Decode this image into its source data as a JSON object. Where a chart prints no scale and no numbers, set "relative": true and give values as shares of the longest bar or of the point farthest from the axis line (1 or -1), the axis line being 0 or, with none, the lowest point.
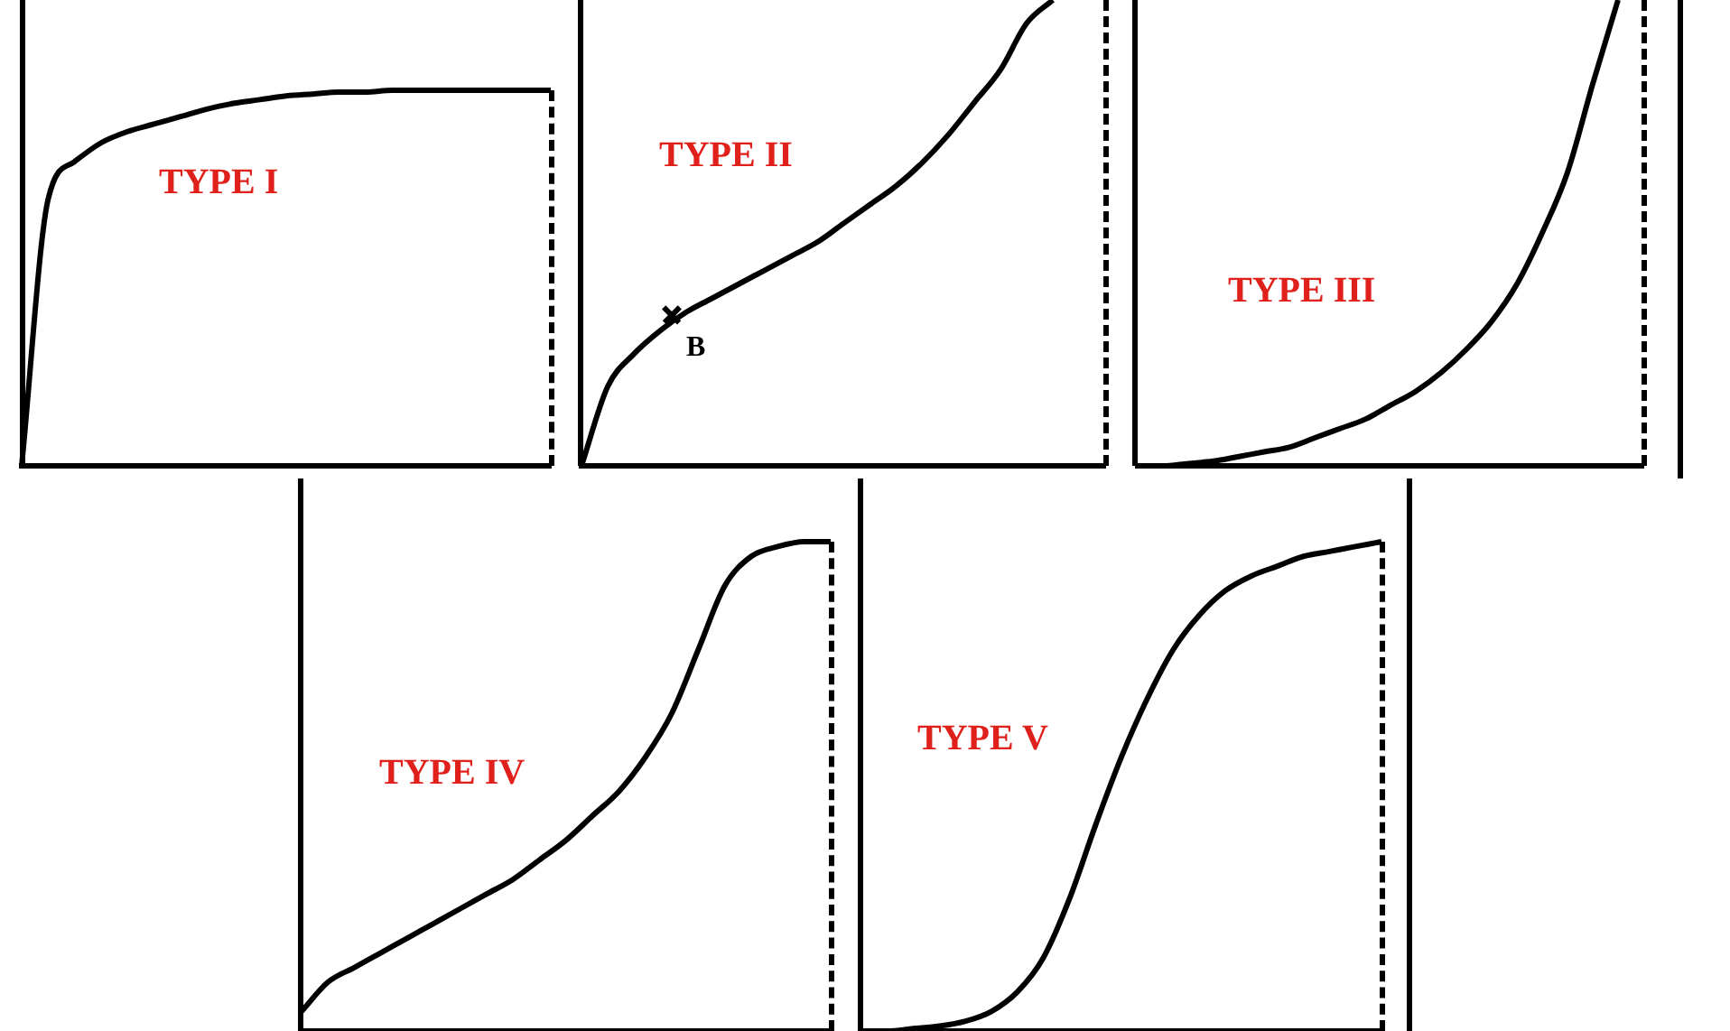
{
  "chart_data": [
    {
      "type": "line",
      "title": "TYPE I",
      "relative": true,
      "color": "#000000",
      "categories": [
        null,
        null,
        null,
        null,
        null,
        null,
        null,
        null,
        null,
        null,
        null,
        null,
        null,
        null,
        null,
        null,
        null,
        null,
        null,
        null,
        null
      ],
      "values": [
        0,
        0.71,
        0.81,
        0.86,
        0.89,
        0.91,
        0.93,
        0.95,
        0.965,
        0.975,
        0.985,
        0.99,
        0.995,
        0.995,
        1,
        1,
        1,
        1,
        1,
        1,
        1
      ]
    },
    {
      "type": "line",
      "title": "TYPE II",
      "relative": true,
      "color": "#000000",
      "annotations": [
        "B"
      ],
      "categories": [
        null,
        null,
        null,
        null,
        null,
        null,
        null,
        null,
        null,
        null,
        null,
        null,
        null,
        null,
        null,
        null,
        null,
        null,
        null,
        null,
        null
      ],
      "values": [
        0,
        0.17,
        0.24,
        0.29,
        0.33,
        0.36,
        0.39,
        0.42,
        0.45,
        0.48,
        0.52,
        0.56,
        0.6,
        0.65,
        0.71,
        0.78,
        0.85,
        0.95,
        1,
        null,
        null
      ]
    },
    {
      "type": "line",
      "title": "TYPE III",
      "relative": true,
      "color": "#000000",
      "categories": [
        null,
        null,
        null,
        null,
        null,
        null,
        null,
        null,
        null,
        null,
        null,
        null,
        null,
        null,
        null,
        null,
        null,
        null,
        null,
        null,
        null
      ],
      "values": [
        0,
        0,
        0.005,
        0.01,
        0.02,
        0.03,
        0.04,
        0.06,
        0.08,
        0.1,
        0.13,
        0.16,
        0.2,
        0.25,
        0.31,
        0.39,
        0.5,
        0.63,
        0.82,
        1,
        null
      ]
    },
    {
      "type": "line",
      "title": "TYPE IV",
      "relative": true,
      "color": "#000000",
      "categories": [
        null,
        null,
        null,
        null,
        null,
        null,
        null,
        null,
        null,
        null,
        null,
        null,
        null,
        null,
        null,
        null,
        null,
        null,
        null,
        null,
        null
      ],
      "values": [
        0.04,
        0.1,
        0.13,
        0.16,
        0.19,
        0.22,
        0.25,
        0.28,
        0.31,
        0.35,
        0.39,
        0.44,
        0.49,
        0.56,
        0.65,
        0.78,
        0.91,
        0.97,
        0.99,
        1,
        1
      ]
    },
    {
      "type": "line",
      "title": "TYPE V",
      "relative": true,
      "color": "#000000",
      "categories": [
        null,
        null,
        null,
        null,
        null,
        null,
        null,
        null,
        null,
        null,
        null,
        null,
        null,
        null,
        null,
        null,
        null,
        null,
        null,
        null,
        null
      ],
      "values": [
        0,
        0,
        0.005,
        0.01,
        0.02,
        0.04,
        0.08,
        0.15,
        0.27,
        0.42,
        0.56,
        0.68,
        0.78,
        0.85,
        0.9,
        0.93,
        0.95,
        0.97,
        0.98,
        0.99,
        1
      ]
    }
  ]
}
